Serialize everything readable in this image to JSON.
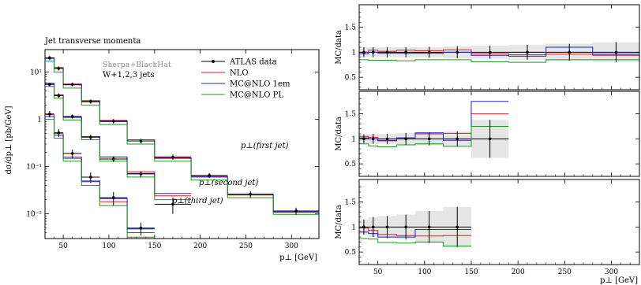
{
  "chart_data": [
    {
      "type": "line",
      "title": "Jet transverse momenta",
      "generator": "Sherpa+BlackHat",
      "process": "W+1,2,3 jets",
      "xlabel": "p⊥ [GeV]",
      "ylabel": "dσ/dp⊥ [pb/GeV]",
      "yscale": "log",
      "xlim": [
        30,
        330
      ],
      "ylim": [
        0.003,
        30
      ],
      "x_ticks": [
        50,
        100,
        150,
        200,
        250,
        300
      ],
      "y_ticks": [
        {
          "value": 10,
          "label": "10¹"
        },
        {
          "value": 1,
          "label": "1"
        },
        {
          "value": 0.1,
          "label": "10⁻¹"
        },
        {
          "value": 0.01,
          "label": "10⁻²"
        }
      ],
      "colors": {
        "data": "#000000",
        "nlo": "#e41a1c",
        "mcnlo1em": "#2020dd",
        "mcnlopl": "#1a9a1a"
      },
      "legend": {
        "placement": "top-right",
        "entries": [
          "ATLAS data",
          "NLO",
          "MC@NLO 1em",
          "MC@NLO PL"
        ]
      },
      "groups": [
        {
          "annotation": "p⊥(first jet)",
          "edges": [
            30,
            40,
            50,
            70,
            90,
            120,
            150,
            190,
            230,
            280,
            330
          ],
          "series": [
            {
              "name": "ATLAS data",
              "values": [
                20,
                12,
                5.5,
                2.4,
                0.92,
                0.35,
                0.16,
                0.065,
                0.026,
                0.0115
              ],
              "errors": [
                2,
                1.2,
                0.5,
                0.25,
                0.1,
                0.04,
                0.02,
                0.008,
                0.004,
                0.002
              ]
            },
            {
              "name": "NLO",
              "values": [
                20,
                12.5,
                5.6,
                2.5,
                0.95,
                0.37,
                0.155,
                0.062,
                0.025,
                0.0108
              ]
            },
            {
              "name": "MC@NLO 1em",
              "values": [
                19.5,
                12,
                5.4,
                2.35,
                0.9,
                0.35,
                0.15,
                0.06,
                0.026,
                0.011
              ]
            },
            {
              "name": "MC@NLO PL",
              "values": [
                17,
                10,
                4.6,
                2,
                0.78,
                0.3,
                0.13,
                0.052,
                0.022,
                0.0098
              ]
            }
          ]
        },
        {
          "annotation": "p⊥(second jet)",
          "edges": [
            30,
            40,
            50,
            70,
            90,
            120,
            150,
            190
          ],
          "series": [
            {
              "name": "ATLAS data",
              "values": [
                5.5,
                3.2,
                1.15,
                0.42,
                0.145,
                0.07,
                0.016
              ],
              "errors": [
                0.5,
                0.35,
                0.12,
                0.05,
                0.02,
                0.01,
                0.006
              ]
            },
            {
              "name": "NLO",
              "values": [
                5.8,
                3.3,
                1.12,
                0.43,
                0.16,
                0.078,
                0.024
              ]
            },
            {
              "name": "MC@NLO 1em",
              "values": [
                5.6,
                3.2,
                1.1,
                0.43,
                0.16,
                0.072,
                0.027
              ]
            },
            {
              "name": "MC@NLO PL",
              "values": [
                5,
                2.8,
                0.97,
                0.37,
                0.13,
                0.06,
                0.02
              ]
            }
          ]
        },
        {
          "annotation": "p⊥(third jet)",
          "edges": [
            30,
            40,
            50,
            70,
            90,
            120,
            150
          ],
          "series": [
            {
              "name": "ATLAS data",
              "values": [
                1.3,
                0.52,
                0.19,
                0.06,
                0.022,
                0.005
              ],
              "errors": [
                0.2,
                0.1,
                0.04,
                0.015,
                0.007,
                0.0015
              ]
            },
            {
              "name": "NLO",
              "values": [
                1.25,
                0.5,
                0.16,
                0.05,
                0.018,
                0.004
              ]
            },
            {
              "name": "MC@NLO 1em",
              "values": [
                1.15,
                0.46,
                0.15,
                0.048,
                0.021,
                0.0048
              ]
            },
            {
              "name": "MC@NLO PL",
              "values": [
                1,
                0.4,
                0.13,
                0.04,
                0.015,
                0.0032
              ]
            }
          ]
        }
      ]
    },
    {
      "type": "line",
      "panels": [
        {
          "ylabel": "MC/data",
          "xlim": [
            30,
            330
          ],
          "ylim": [
            0.25,
            1.95
          ],
          "y_ticks": [
            0.5,
            1,
            1.5
          ],
          "x_ticks": [
            50,
            100,
            150,
            200,
            250,
            300
          ],
          "edges": [
            30,
            40,
            50,
            70,
            90,
            120,
            150,
            190,
            230,
            280,
            330
          ],
          "band": [
            0.1,
            0.1,
            0.1,
            0.1,
            0.1,
            0.12,
            0.13,
            0.15,
            0.17,
            0.2
          ],
          "data": {
            "values": [
              1,
              1,
              1,
              1,
              1,
              1,
              1,
              1,
              1,
              1
            ],
            "errors": [
              0.1,
              0.1,
              0.1,
              0.1,
              0.11,
              0.12,
              0.13,
              0.15,
              0.17,
              0.2
            ]
          },
          "series": [
            {
              "name": "NLO",
              "values": [
                1,
                1.04,
                1.02,
                1.04,
                1.03,
                1.05,
                0.97,
                0.95,
                0.96,
                0.94
              ]
            },
            {
              "name": "MC@NLO 1em",
              "values": [
                0.97,
                1,
                0.98,
                0.98,
                0.98,
                1,
                0.94,
                0.92,
                1.1,
                0.96
              ]
            },
            {
              "name": "MC@NLO PL",
              "values": [
                0.85,
                0.84,
                0.84,
                0.83,
                0.85,
                0.85,
                0.81,
                0.8,
                0.85,
                0.85
              ]
            }
          ]
        },
        {
          "ylabel": "MC/data",
          "xlim": [
            30,
            330
          ],
          "ylim": [
            0.25,
            1.95
          ],
          "y_ticks": [
            0.5,
            1,
            1.5
          ],
          "x_ticks": [
            50,
            100,
            150,
            200,
            250,
            300
          ],
          "edges": [
            30,
            40,
            50,
            70,
            90,
            120,
            150,
            190
          ],
          "band": [
            0.09,
            0.1,
            0.1,
            0.12,
            0.13,
            0.15,
            0.38
          ],
          "data": {
            "values": [
              1,
              1,
              1,
              1,
              1,
              1,
              1
            ],
            "errors": [
              0.09,
              0.1,
              0.1,
              0.12,
              0.13,
              0.15,
              0.38
            ]
          },
          "series": [
            {
              "name": "NLO",
              "values": [
                1.05,
                1.03,
                0.97,
                1.02,
                1.1,
                1.11,
                1.5
              ]
            },
            {
              "name": "MC@NLO 1em",
              "values": [
                1.02,
                1,
                0.96,
                1.02,
                1.12,
                0.97,
                1.75
              ]
            },
            {
              "name": "MC@NLO PL",
              "values": [
                0.9,
                0.86,
                0.84,
                0.88,
                0.9,
                0.85,
                1.25
              ]
            }
          ]
        },
        {
          "ylabel": "MC/data",
          "xlabel": "p⊥ [GeV]",
          "xlim": [
            30,
            330
          ],
          "ylim": [
            0.25,
            1.95
          ],
          "y_ticks": [
            0.5,
            1,
            1.5
          ],
          "x_ticks": [
            50,
            100,
            150,
            200,
            250,
            300
          ],
          "edges": [
            30,
            40,
            50,
            70,
            90,
            120,
            150
          ],
          "band": [
            0.15,
            0.2,
            0.22,
            0.25,
            0.32,
            0.4
          ],
          "data": {
            "values": [
              1,
              1,
              1,
              1,
              1,
              1
            ],
            "errors": [
              0.15,
              0.2,
              0.22,
              0.25,
              0.32,
              0.4
            ]
          },
          "series": [
            {
              "name": "NLO",
              "values": [
                0.98,
                0.93,
                0.85,
                0.83,
                0.82,
                0.83
              ]
            },
            {
              "name": "MC@NLO 1em",
              "values": [
                0.9,
                0.87,
                0.8,
                0.8,
                0.95,
                0.95
              ]
            },
            {
              "name": "MC@NLO PL",
              "values": [
                0.77,
                0.76,
                0.69,
                0.68,
                0.7,
                0.62
              ]
            }
          ]
        }
      ]
    }
  ]
}
